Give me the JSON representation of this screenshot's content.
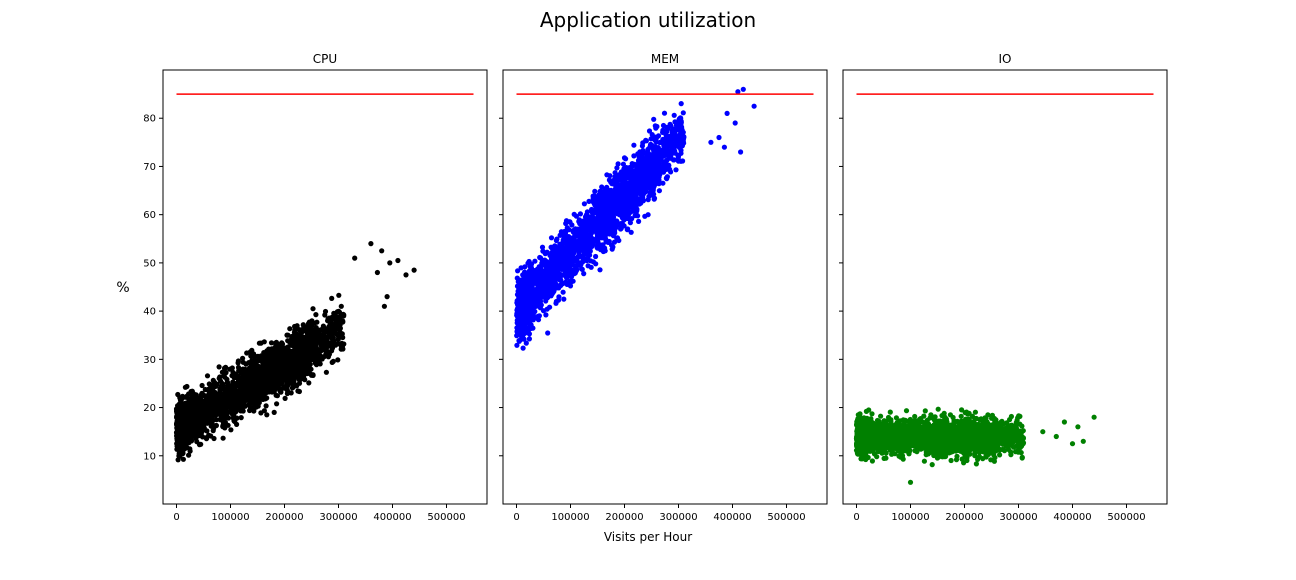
{
  "figure": {
    "title": "Application utilization",
    "shared_xlabel": "Visits per Hour",
    "shared_ylabel": "%"
  },
  "chart_data": [
    {
      "type": "scatter",
      "title": "CPU",
      "color": "#000000",
      "threshold": {
        "value": 85,
        "x": [
          0,
          550000
        ],
        "color": "#ff0000"
      },
      "xlim": [
        -25000,
        575000
      ],
      "ylim": [
        0,
        90
      ],
      "xticks": [
        "0",
        "100000",
        "200000",
        "300000",
        "400000",
        "500000"
      ],
      "yticks": [
        "10",
        "20",
        "30",
        "40",
        "50",
        "60",
        "70",
        "80"
      ],
      "trend": {
        "y_at_0": 15.5,
        "slope_per_100k": 6.7,
        "noise_sd": 2.6
      },
      "outliers": [
        [
          360000,
          54
        ],
        [
          372000,
          48
        ],
        [
          380000,
          52.5
        ],
        [
          395000,
          50
        ],
        [
          410000,
          50.5
        ],
        [
          425000,
          47.5
        ],
        [
          440000,
          48.5
        ],
        [
          330000,
          51
        ],
        [
          385000,
          41
        ],
        [
          390000,
          43
        ]
      ],
      "n_points": 2600
    },
    {
      "type": "scatter",
      "title": "MEM",
      "color": "#0000ff",
      "threshold": {
        "value": 85,
        "x": [
          0,
          550000
        ],
        "color": "#ff0000"
      },
      "xlim": [
        -25000,
        575000
      ],
      "ylim": [
        0,
        90
      ],
      "xticks": [
        "0",
        "100000",
        "200000",
        "300000",
        "400000",
        "500000"
      ],
      "yticks": [],
      "trend": {
        "y_at_0": 40,
        "slope_per_100k": 12,
        "noise_sd": 3.0
      },
      "outliers": [
        [
          410000,
          85.5
        ],
        [
          420000,
          86
        ],
        [
          440000,
          82.5
        ],
        [
          390000,
          81
        ],
        [
          405000,
          79
        ],
        [
          415000,
          73
        ],
        [
          385000,
          74
        ],
        [
          375000,
          76
        ],
        [
          360000,
          75
        ]
      ],
      "n_points": 2600
    },
    {
      "type": "scatter",
      "title": "IO",
      "color": "#008000",
      "threshold": {
        "value": 85,
        "x": [
          0,
          550000
        ],
        "color": "#ff0000"
      },
      "xlim": [
        -25000,
        575000
      ],
      "ylim": [
        0,
        90
      ],
      "xticks": [
        "0",
        "100000",
        "200000",
        "300000",
        "400000",
        "500000"
      ],
      "yticks": [],
      "trend": {
        "y_at_0": 14,
        "slope_per_100k": 0,
        "noise_sd": 1.8
      },
      "outliers": [
        [
          100000,
          4.5
        ],
        [
          385000,
          17
        ],
        [
          410000,
          16
        ],
        [
          440000,
          18
        ],
        [
          420000,
          13
        ],
        [
          400000,
          12.5
        ],
        [
          370000,
          14
        ],
        [
          345000,
          15
        ]
      ],
      "n_points": 2600
    }
  ]
}
